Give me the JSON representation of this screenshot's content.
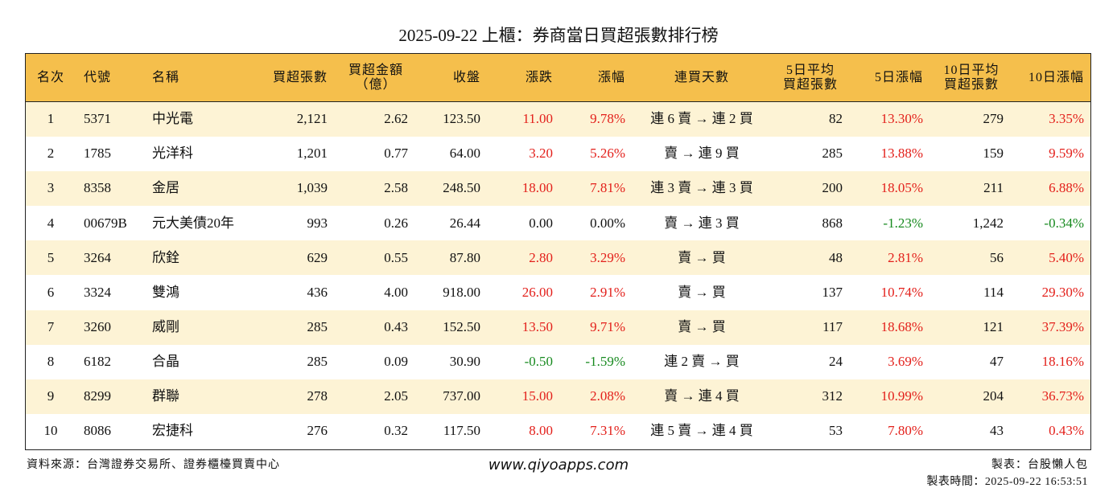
{
  "title": "2025-09-22 上櫃：券商當日買超張數排行榜",
  "table": {
    "header": [
      "名次",
      "代號",
      "名稱",
      "買超張數",
      "買超金額\n（億）",
      "收盤",
      "漲跌",
      "漲幅",
      "連買天數",
      "5日平均\n買超張數",
      "5日漲幅",
      "10日平均\n買超張數",
      "10日漲幅"
    ],
    "rows": [
      [
        "1",
        "5371",
        "中光電",
        "2,121",
        "2.62",
        "123.50",
        "11.00",
        "9.78%",
        "連 6 賣 → 連 2 買",
        "82",
        "13.30%",
        "279",
        "3.35%"
      ],
      [
        "2",
        "1785",
        "光洋科",
        "1,201",
        "0.77",
        "64.00",
        "3.20",
        "5.26%",
        "賣 → 連 9 買",
        "285",
        "13.88%",
        "159",
        "9.59%"
      ],
      [
        "3",
        "8358",
        "金居",
        "1,039",
        "2.58",
        "248.50",
        "18.00",
        "7.81%",
        "連 3 賣 → 連 3 買",
        "200",
        "18.05%",
        "211",
        "6.88%"
      ],
      [
        "4",
        "00679B",
        "元大美債20年",
        "993",
        "0.26",
        "26.44",
        "0.00",
        "0.00%",
        "賣 → 連 3 買",
        "868",
        "-1.23%",
        "1,242",
        "-0.34%"
      ],
      [
        "5",
        "3264",
        "欣銓",
        "629",
        "0.55",
        "87.80",
        "2.80",
        "3.29%",
        "賣 → 買",
        "48",
        "2.81%",
        "56",
        "5.40%"
      ],
      [
        "6",
        "3324",
        "雙鴻",
        "436",
        "4.00",
        "918.00",
        "26.00",
        "2.91%",
        "賣 → 買",
        "137",
        "10.74%",
        "114",
        "29.30%"
      ],
      [
        "7",
        "3260",
        "威剛",
        "285",
        "0.43",
        "152.50",
        "13.50",
        "9.71%",
        "賣 → 買",
        "117",
        "18.68%",
        "121",
        "37.39%"
      ],
      [
        "8",
        "6182",
        "合晶",
        "285",
        "0.09",
        "30.90",
        "-0.50",
        "-1.59%",
        "連 2 賣 → 買",
        "24",
        "3.69%",
        "47",
        "18.16%"
      ],
      [
        "9",
        "8299",
        "群聯",
        "278",
        "2.05",
        "737.00",
        "15.00",
        "2.08%",
        "賣 → 連 4 買",
        "312",
        "10.99%",
        "204",
        "36.73%"
      ],
      [
        "10",
        "8086",
        "宏捷科",
        "276",
        "0.32",
        "117.50",
        "8.00",
        "7.31%",
        "連 5 賣 → 連 4 買",
        "53",
        "7.80%",
        "43",
        "0.43%"
      ]
    ]
  },
  "footer": {
    "source": "資料來源：台灣證券交易所、證券櫃檯買賣中心",
    "site": "www.qiyoapps.com",
    "author": "製表：台股懶人包",
    "time": "製表時間：2025-09-22 16:53:51"
  }
}
